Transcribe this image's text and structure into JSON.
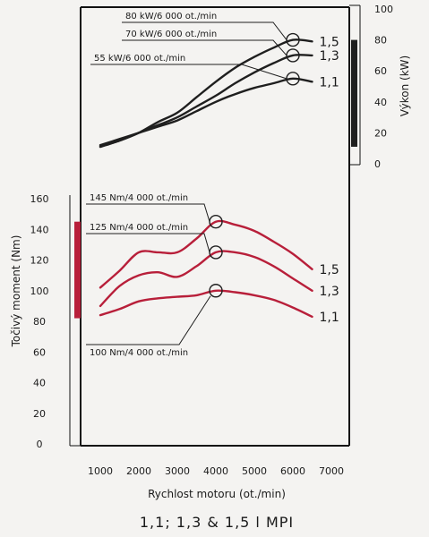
{
  "chart_data": {
    "type": "line",
    "caption": "1,1; 1,3 & 1,5 l MPI",
    "xlabel": "Rychlost motoru (ot./min)",
    "xticks": [
      1000,
      2000,
      3000,
      4000,
      5000,
      6000,
      7000
    ],
    "xlim": [
      700,
      7000
    ],
    "power": {
      "ylabel": "Výkon (kW)",
      "ylim": [
        0,
        100
      ],
      "yticks": [
        0,
        20,
        40,
        60,
        80,
        100
      ],
      "range_bar": [
        11,
        80
      ],
      "series": [
        {
          "name": "1,5",
          "x": [
            1000,
            1500,
            2000,
            2500,
            3000,
            3500,
            4000,
            4500,
            5000,
            5500,
            6000,
            6500
          ],
          "values": [
            11,
            15,
            20,
            27,
            33,
            43,
            53,
            62,
            69,
            75,
            80,
            79
          ]
        },
        {
          "name": "1,3",
          "x": [
            1000,
            1500,
            2000,
            2500,
            3000,
            3500,
            4000,
            4500,
            5000,
            5500,
            6000,
            6500
          ],
          "values": [
            11,
            15,
            20,
            25,
            30,
            37,
            44,
            52,
            59,
            65,
            70,
            70
          ]
        },
        {
          "name": "1,1",
          "x": [
            1000,
            1500,
            2000,
            2500,
            3000,
            3500,
            4000,
            4500,
            5000,
            5500,
            6000,
            6500
          ],
          "values": [
            12,
            16,
            20,
            24,
            28,
            34,
            40,
            45,
            49,
            52,
            55,
            53
          ]
        }
      ],
      "annotations": [
        {
          "text": "80 kW/6 000 ot./min",
          "x": 6000,
          "y": 80
        },
        {
          "text": "70 kW/6 000 ot./min",
          "x": 6000,
          "y": 70
        },
        {
          "text": "55 kW/6 000 ot./min",
          "x": 6000,
          "y": 55
        }
      ]
    },
    "torque": {
      "ylabel": "Točivý moment (Nm)",
      "ylim": [
        0,
        160
      ],
      "yticks": [
        0,
        20,
        40,
        60,
        80,
        100,
        120,
        140,
        160
      ],
      "range_bar": [
        82,
        145
      ],
      "series": [
        {
          "name": "1,5",
          "x": [
            1000,
            1500,
            2000,
            2500,
            3000,
            3500,
            4000,
            4500,
            5000,
            5500,
            6000,
            6500
          ],
          "values": [
            102,
            113,
            125,
            125,
            125,
            134,
            145,
            143,
            139,
            132,
            124,
            114
          ]
        },
        {
          "name": "1,3",
          "x": [
            1000,
            1500,
            2000,
            2500,
            3000,
            3500,
            4000,
            4500,
            5000,
            5500,
            6000,
            6500
          ],
          "values": [
            90,
            103,
            110,
            112,
            109,
            116,
            125,
            125,
            122,
            116,
            108,
            100
          ]
        },
        {
          "name": "1,1",
          "x": [
            1000,
            1500,
            2000,
            2500,
            3000,
            3500,
            4000,
            4500,
            5000,
            5500,
            6000,
            6500
          ],
          "values": [
            84,
            88,
            93,
            95,
            96,
            97,
            100,
            99,
            97,
            94,
            89,
            83
          ]
        }
      ],
      "annotations": [
        {
          "text": "145 Nm/4 000 ot./min",
          "x": 4000,
          "y": 145
        },
        {
          "text": "125 Nm/4 000 ot./min",
          "x": 4000,
          "y": 125
        },
        {
          "text": "100 Nm/4 000 ot./min",
          "x": 4000,
          "y": 100
        }
      ]
    },
    "colors": {
      "power": "#1f1f1f",
      "torque": "#b81f3a",
      "frame": "#111111"
    }
  }
}
